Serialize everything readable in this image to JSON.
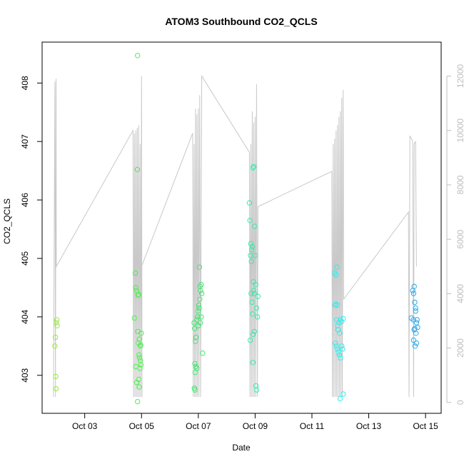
{
  "chart_data": {
    "type": "scatter",
    "title": "ATOM3 Southbound CO2_QCLS",
    "xlabel": "Date",
    "ylabel": "CO2_QCLS",
    "x_ticks": [
      "Oct 03",
      "Oct 05",
      "Oct 07",
      "Oct 09",
      "Oct 11",
      "Oct 13",
      "Oct 15"
    ],
    "x_tick_days": [
      3,
      5,
      7,
      9,
      11,
      13,
      15
    ],
    "xlim": [
      1.5,
      15.55
    ],
    "y_ticks": [
      403,
      404,
      405,
      406,
      407,
      408
    ],
    "ylim": [
      402.35,
      408.7
    ],
    "y2_ticks": [
      0,
      2000,
      4000,
      6000,
      8000,
      10000,
      12000
    ],
    "y2lim": [
      -400,
      13250
    ],
    "right_axis_color": "#bdbdbd",
    "altitude_line_color": "#c8c8c8",
    "scatter_series": [
      {
        "color": "#9be64a",
        "points": [
          [
            1.95,
            403.5
          ],
          [
            1.97,
            403.65
          ],
          [
            2.0,
            403.9
          ],
          [
            2.02,
            403.95
          ],
          [
            2.03,
            403.85
          ],
          [
            1.98,
            402.98
          ],
          [
            1.99,
            402.77
          ]
        ]
      },
      {
        "color": "#4ef04e",
        "points": [
          [
            4.75,
            403.98
          ],
          [
            4.78,
            404.75
          ],
          [
            4.8,
            404.5
          ],
          [
            4.82,
            404.45
          ],
          [
            4.85,
            406.52
          ],
          [
            4.86,
            408.47
          ],
          [
            4.88,
            404.37
          ],
          [
            4.9,
            404.38
          ],
          [
            4.87,
            403.75
          ],
          [
            4.89,
            403.55
          ],
          [
            4.92,
            403.62
          ],
          [
            4.95,
            403.5
          ],
          [
            4.97,
            403.52
          ],
          [
            4.91,
            403.35
          ],
          [
            4.93,
            403.3
          ],
          [
            4.96,
            403.25
          ],
          [
            4.98,
            403.18
          ],
          [
            4.94,
            403.12
          ],
          [
            4.8,
            403.15
          ],
          [
            4.83,
            402.88
          ],
          [
            4.9,
            402.93
          ],
          [
            4.92,
            402.8
          ],
          [
            4.86,
            402.55
          ],
          [
            4.99,
            403.72
          ]
        ]
      },
      {
        "color": "#3fe870",
        "points": [
          [
            6.85,
            403.9
          ],
          [
            6.87,
            403.8
          ],
          [
            6.9,
            403.58
          ],
          [
            6.92,
            403.65
          ],
          [
            6.88,
            403.2
          ],
          [
            6.91,
            403.15
          ],
          [
            6.95,
            403.12
          ],
          [
            6.89,
            403.05
          ],
          [
            6.86,
            402.78
          ],
          [
            6.88,
            402.75
          ],
          [
            6.95,
            403.95
          ],
          [
            6.98,
            404.0
          ],
          [
            7.0,
            404.1
          ],
          [
            7.02,
            404.2
          ],
          [
            7.05,
            404.3
          ],
          [
            7.08,
            404.45
          ],
          [
            7.1,
            404.55
          ],
          [
            7.12,
            404.4
          ],
          [
            7.06,
            404.52
          ],
          [
            7.04,
            404.85
          ],
          [
            7.1,
            404.0
          ],
          [
            7.0,
            403.85
          ],
          [
            7.15,
            403.38
          ],
          [
            7.03,
            404.15
          ],
          [
            7.07,
            403.9
          ]
        ]
      },
      {
        "color": "#3ee8a8",
        "points": [
          [
            8.8,
            405.95
          ],
          [
            8.82,
            405.65
          ],
          [
            8.85,
            405.25
          ],
          [
            8.88,
            405.15
          ],
          [
            8.9,
            405.2
          ],
          [
            8.92,
            406.55
          ],
          [
            8.95,
            406.57
          ],
          [
            8.98,
            405.55
          ],
          [
            9.0,
            405.05
          ],
          [
            8.84,
            405.05
          ],
          [
            8.87,
            404.95
          ],
          [
            8.86,
            404.4
          ],
          [
            8.89,
            404.25
          ],
          [
            8.91,
            404.05
          ],
          [
            8.95,
            404.45
          ],
          [
            8.97,
            404.4
          ],
          [
            9.02,
            404.55
          ],
          [
            9.05,
            404.15
          ],
          [
            9.08,
            404.0
          ],
          [
            9.1,
            404.35
          ],
          [
            8.83,
            403.6
          ],
          [
            8.93,
            403.7
          ],
          [
            8.97,
            403.75
          ],
          [
            8.92,
            403.22
          ],
          [
            9.03,
            402.82
          ],
          [
            9.05,
            402.75
          ],
          [
            8.94,
            404.6
          ]
        ]
      },
      {
        "color": "#33eeee",
        "points": [
          [
            11.8,
            404.75
          ],
          [
            11.85,
            404.72
          ],
          [
            11.88,
            404.85
          ],
          [
            11.82,
            404.2
          ],
          [
            11.85,
            404.22
          ],
          [
            11.9,
            404.2
          ],
          [
            11.87,
            403.95
          ],
          [
            11.9,
            403.85
          ],
          [
            11.92,
            403.78
          ],
          [
            11.95,
            403.9
          ],
          [
            11.98,
            403.72
          ],
          [
            12.0,
            403.95
          ],
          [
            12.05,
            403.92
          ],
          [
            12.1,
            403.97
          ],
          [
            11.83,
            403.55
          ],
          [
            11.86,
            403.5
          ],
          [
            11.89,
            403.45
          ],
          [
            11.94,
            403.4
          ],
          [
            11.97,
            403.35
          ],
          [
            12.0,
            403.3
          ],
          [
            12.05,
            403.5
          ],
          [
            12.08,
            403.45
          ],
          [
            11.99,
            402.6
          ],
          [
            12.1,
            402.68
          ]
        ]
      },
      {
        "color": "#2ea8e8",
        "points": [
          [
            14.5,
            403.98
          ],
          [
            14.55,
            404.45
          ],
          [
            14.58,
            404.4
          ],
          [
            14.6,
            404.52
          ],
          [
            14.62,
            404.25
          ],
          [
            14.65,
            404.15
          ],
          [
            14.57,
            403.95
          ],
          [
            14.62,
            403.8
          ],
          [
            14.68,
            403.9
          ],
          [
            14.7,
            403.95
          ],
          [
            14.6,
            403.78
          ],
          [
            14.66,
            403.72
          ],
          [
            14.58,
            403.6
          ],
          [
            14.63,
            403.5
          ],
          [
            14.68,
            403.55
          ],
          [
            14.72,
            403.82
          ],
          [
            14.65,
            404.1
          ]
        ]
      }
    ],
    "altitude_path": [
      [
        1.9,
        200
      ],
      [
        1.95,
        11800
      ],
      [
        1.97,
        200
      ],
      [
        1.99,
        11900
      ],
      [
        2.0,
        5000
      ],
      [
        4.7,
        10000
      ],
      [
        4.72,
        200
      ],
      [
        4.75,
        9900
      ],
      [
        4.77,
        200
      ],
      [
        4.8,
        10000
      ],
      [
        4.82,
        200
      ],
      [
        4.85,
        10100
      ],
      [
        4.87,
        200
      ],
      [
        4.9,
        10200
      ],
      [
        4.92,
        200
      ],
      [
        4.95,
        9500
      ],
      [
        4.97,
        200
      ],
      [
        5.0,
        12000
      ],
      [
        5.02,
        200
      ],
      [
        5.0,
        5000
      ],
      [
        6.8,
        9900
      ],
      [
        6.82,
        200
      ],
      [
        6.85,
        9500
      ],
      [
        6.87,
        200
      ],
      [
        6.9,
        10800
      ],
      [
        6.92,
        200
      ],
      [
        6.95,
        10600
      ],
      [
        6.97,
        200
      ],
      [
        7.0,
        10800
      ],
      [
        7.02,
        200
      ],
      [
        7.05,
        11300
      ],
      [
        7.08,
        200
      ],
      [
        7.12,
        12000
      ],
      [
        8.8,
        9200
      ],
      [
        8.82,
        200
      ],
      [
        8.85,
        9500
      ],
      [
        8.87,
        200
      ],
      [
        8.9,
        10700
      ],
      [
        8.92,
        200
      ],
      [
        8.95,
        10300
      ],
      [
        8.97,
        200
      ],
      [
        9.0,
        10500
      ],
      [
        9.02,
        200
      ],
      [
        9.05,
        11700
      ],
      [
        9.08,
        200
      ],
      [
        9.1,
        7200
      ],
      [
        11.7,
        8500
      ],
      [
        11.72,
        200
      ],
      [
        11.75,
        9500
      ],
      [
        11.77,
        200
      ],
      [
        11.8,
        9700
      ],
      [
        11.82,
        200
      ],
      [
        11.85,
        10000
      ],
      [
        11.87,
        200
      ],
      [
        11.9,
        10200
      ],
      [
        11.92,
        200
      ],
      [
        11.95,
        10500
      ],
      [
        11.97,
        200
      ],
      [
        12.0,
        10700
      ],
      [
        12.02,
        200
      ],
      [
        12.05,
        11200
      ],
      [
        12.07,
        200
      ],
      [
        12.1,
        11500
      ],
      [
        12.12,
        3800
      ],
      [
        14.4,
        7000
      ],
      [
        14.42,
        200
      ],
      [
        14.45,
        9800
      ],
      [
        14.5,
        9700
      ],
      [
        14.55,
        9600
      ],
      [
        14.58,
        200
      ],
      [
        14.6,
        9500
      ],
      [
        14.65,
        9600
      ],
      [
        14.68,
        5000
      ]
    ]
  }
}
